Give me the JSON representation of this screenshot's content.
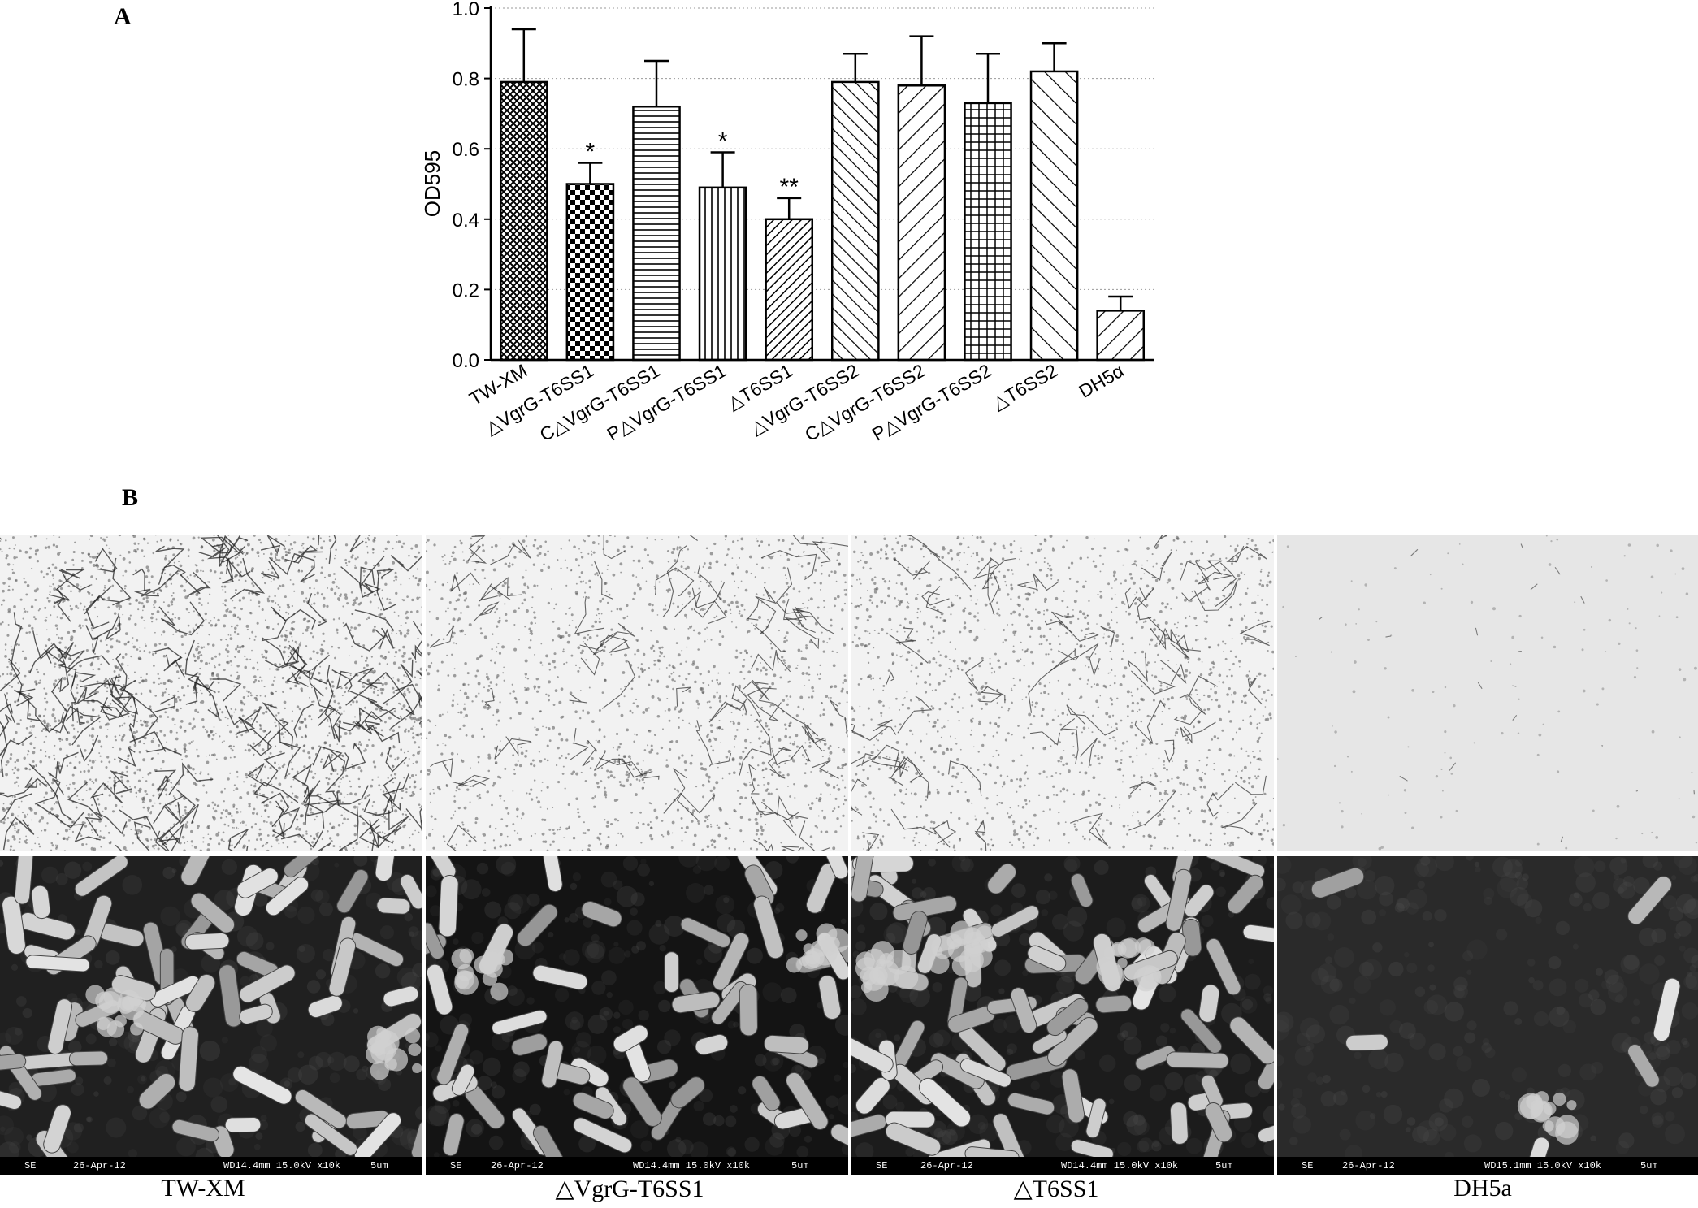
{
  "panel_a_label": "A",
  "panel_b_label": "B",
  "chart_data": {
    "type": "bar",
    "ylabel": "OD595",
    "xlabel": "",
    "ylim": [
      0,
      1.0
    ],
    "yticks": [
      "0.0",
      "0.2",
      "0.4",
      "0.6",
      "0.8",
      "1.0"
    ],
    "grid": "horizontal dotted",
    "categories": [
      "TW-XM",
      "△VgrG-T6SS1",
      "C△VgrG-T6SS1",
      "P△VgrG-T6SS1",
      "△T6SS1",
      "△VgrG-T6SS2",
      "C△VgrG-T6SS2",
      "P△VgrG-T6SS2",
      "△T6SS2",
      "DH5α"
    ],
    "values": [
      0.79,
      0.5,
      0.72,
      0.49,
      0.4,
      0.79,
      0.78,
      0.73,
      0.82,
      0.14
    ],
    "errors": [
      0.15,
      0.06,
      0.13,
      0.1,
      0.06,
      0.08,
      0.14,
      0.14,
      0.08,
      0.04
    ],
    "significance": [
      "",
      "*",
      "",
      "*",
      "**",
      "",
      "",
      "",
      "",
      ""
    ],
    "patterns": [
      "crosshatch-fine",
      "checker",
      "horizontal",
      "vertical",
      "diag-dense",
      "diag-back",
      "diag-fwd",
      "grid",
      "diag-back-wide",
      "diag-fwd-wide"
    ]
  },
  "micrographs": {
    "captions": [
      "TW-XM",
      "△VgrG-T6SS1",
      "△T6SS1",
      "DH5a"
    ],
    "sem_info": [
      {
        "mode": "SE",
        "date": "26-Apr-12",
        "params": "WD14.4mm 15.0kV x10k",
        "scale": "5um"
      },
      {
        "mode": "SE",
        "date": "26-Apr-12",
        "params": "WD14.4mm 15.0kV x10k",
        "scale": "5um"
      },
      {
        "mode": "SE",
        "date": "26-Apr-12",
        "params": "WD14.4mm 15.0kV x10k",
        "scale": "5um"
      },
      {
        "mode": "SE",
        "date": "26-Apr-12",
        "params": "WD15.1mm 15.0kV x10k",
        "scale": "5um"
      }
    ]
  }
}
